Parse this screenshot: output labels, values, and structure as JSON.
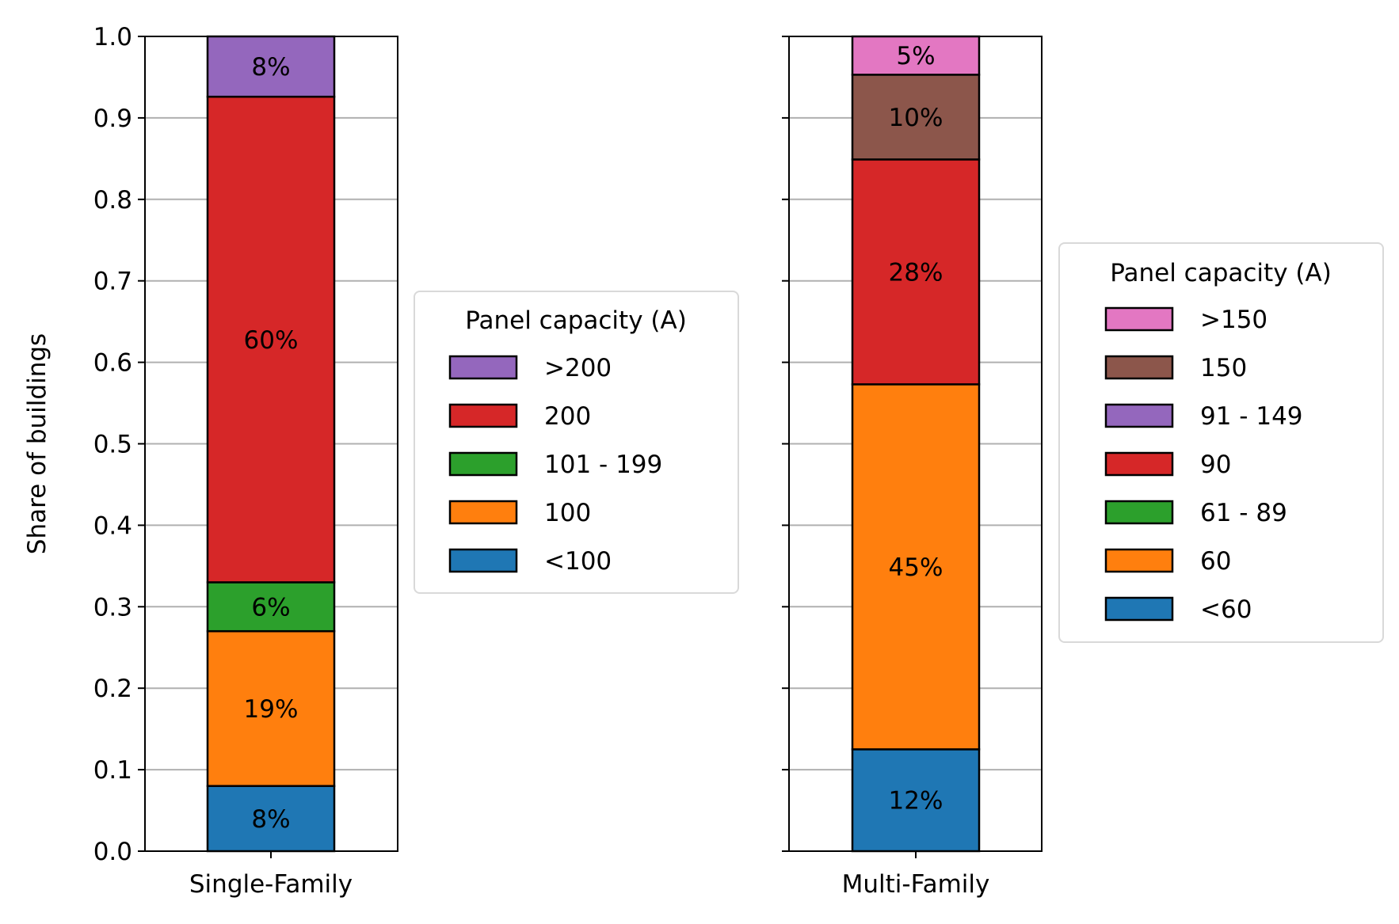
{
  "chart_data": [
    {
      "type": "bar",
      "stacked": true,
      "category": "Single-Family",
      "ylabel": "Share of buildings",
      "ylim": [
        0,
        1
      ],
      "yticks": [
        "0.0",
        "0.1",
        "0.2",
        "0.3",
        "0.4",
        "0.5",
        "0.6",
        "0.7",
        "0.8",
        "0.9",
        "1.0"
      ],
      "grid": "y",
      "legend": {
        "title": "Panel capacity (A)",
        "placement": "right"
      },
      "series": [
        {
          "name": "<100",
          "value": 0.08,
          "label": "8%",
          "color": "#1f77b4"
        },
        {
          "name": "100",
          "value": 0.19,
          "label": "19%",
          "color": "#ff7f0e"
        },
        {
          "name": "101 - 199",
          "value": 0.06,
          "label": "6%",
          "color": "#2ca02c"
        },
        {
          "name": "200",
          "value": 0.596,
          "label": "60%",
          "color": "#d62728"
        },
        {
          "name": ">200",
          "value": 0.074,
          "label": "8%",
          "color": "#9467bd"
        }
      ]
    },
    {
      "type": "bar",
      "stacked": true,
      "category": "Multi-Family",
      "ylim": [
        0,
        1
      ],
      "grid": "y",
      "legend": {
        "title": "Panel capacity (A)",
        "placement": "right"
      },
      "series": [
        {
          "name": "<60",
          "value": 0.125,
          "label": "12%",
          "color": "#1f77b4"
        },
        {
          "name": "60",
          "value": 0.448,
          "label": "45%",
          "color": "#ff7f0e"
        },
        {
          "name": "61 - 89",
          "value": 0.0,
          "label": "",
          "color": "#2ca02c"
        },
        {
          "name": "90",
          "value": 0.276,
          "label": "28%",
          "color": "#d62728"
        },
        {
          "name": "91 - 149",
          "value": 0.0,
          "label": "",
          "color": "#9467bd"
        },
        {
          "name": "150",
          "value": 0.104,
          "label": "10%",
          "color": "#8c564b"
        },
        {
          "name": ">150",
          "value": 0.047,
          "label": "5%",
          "color": "#e377c2"
        }
      ]
    }
  ]
}
